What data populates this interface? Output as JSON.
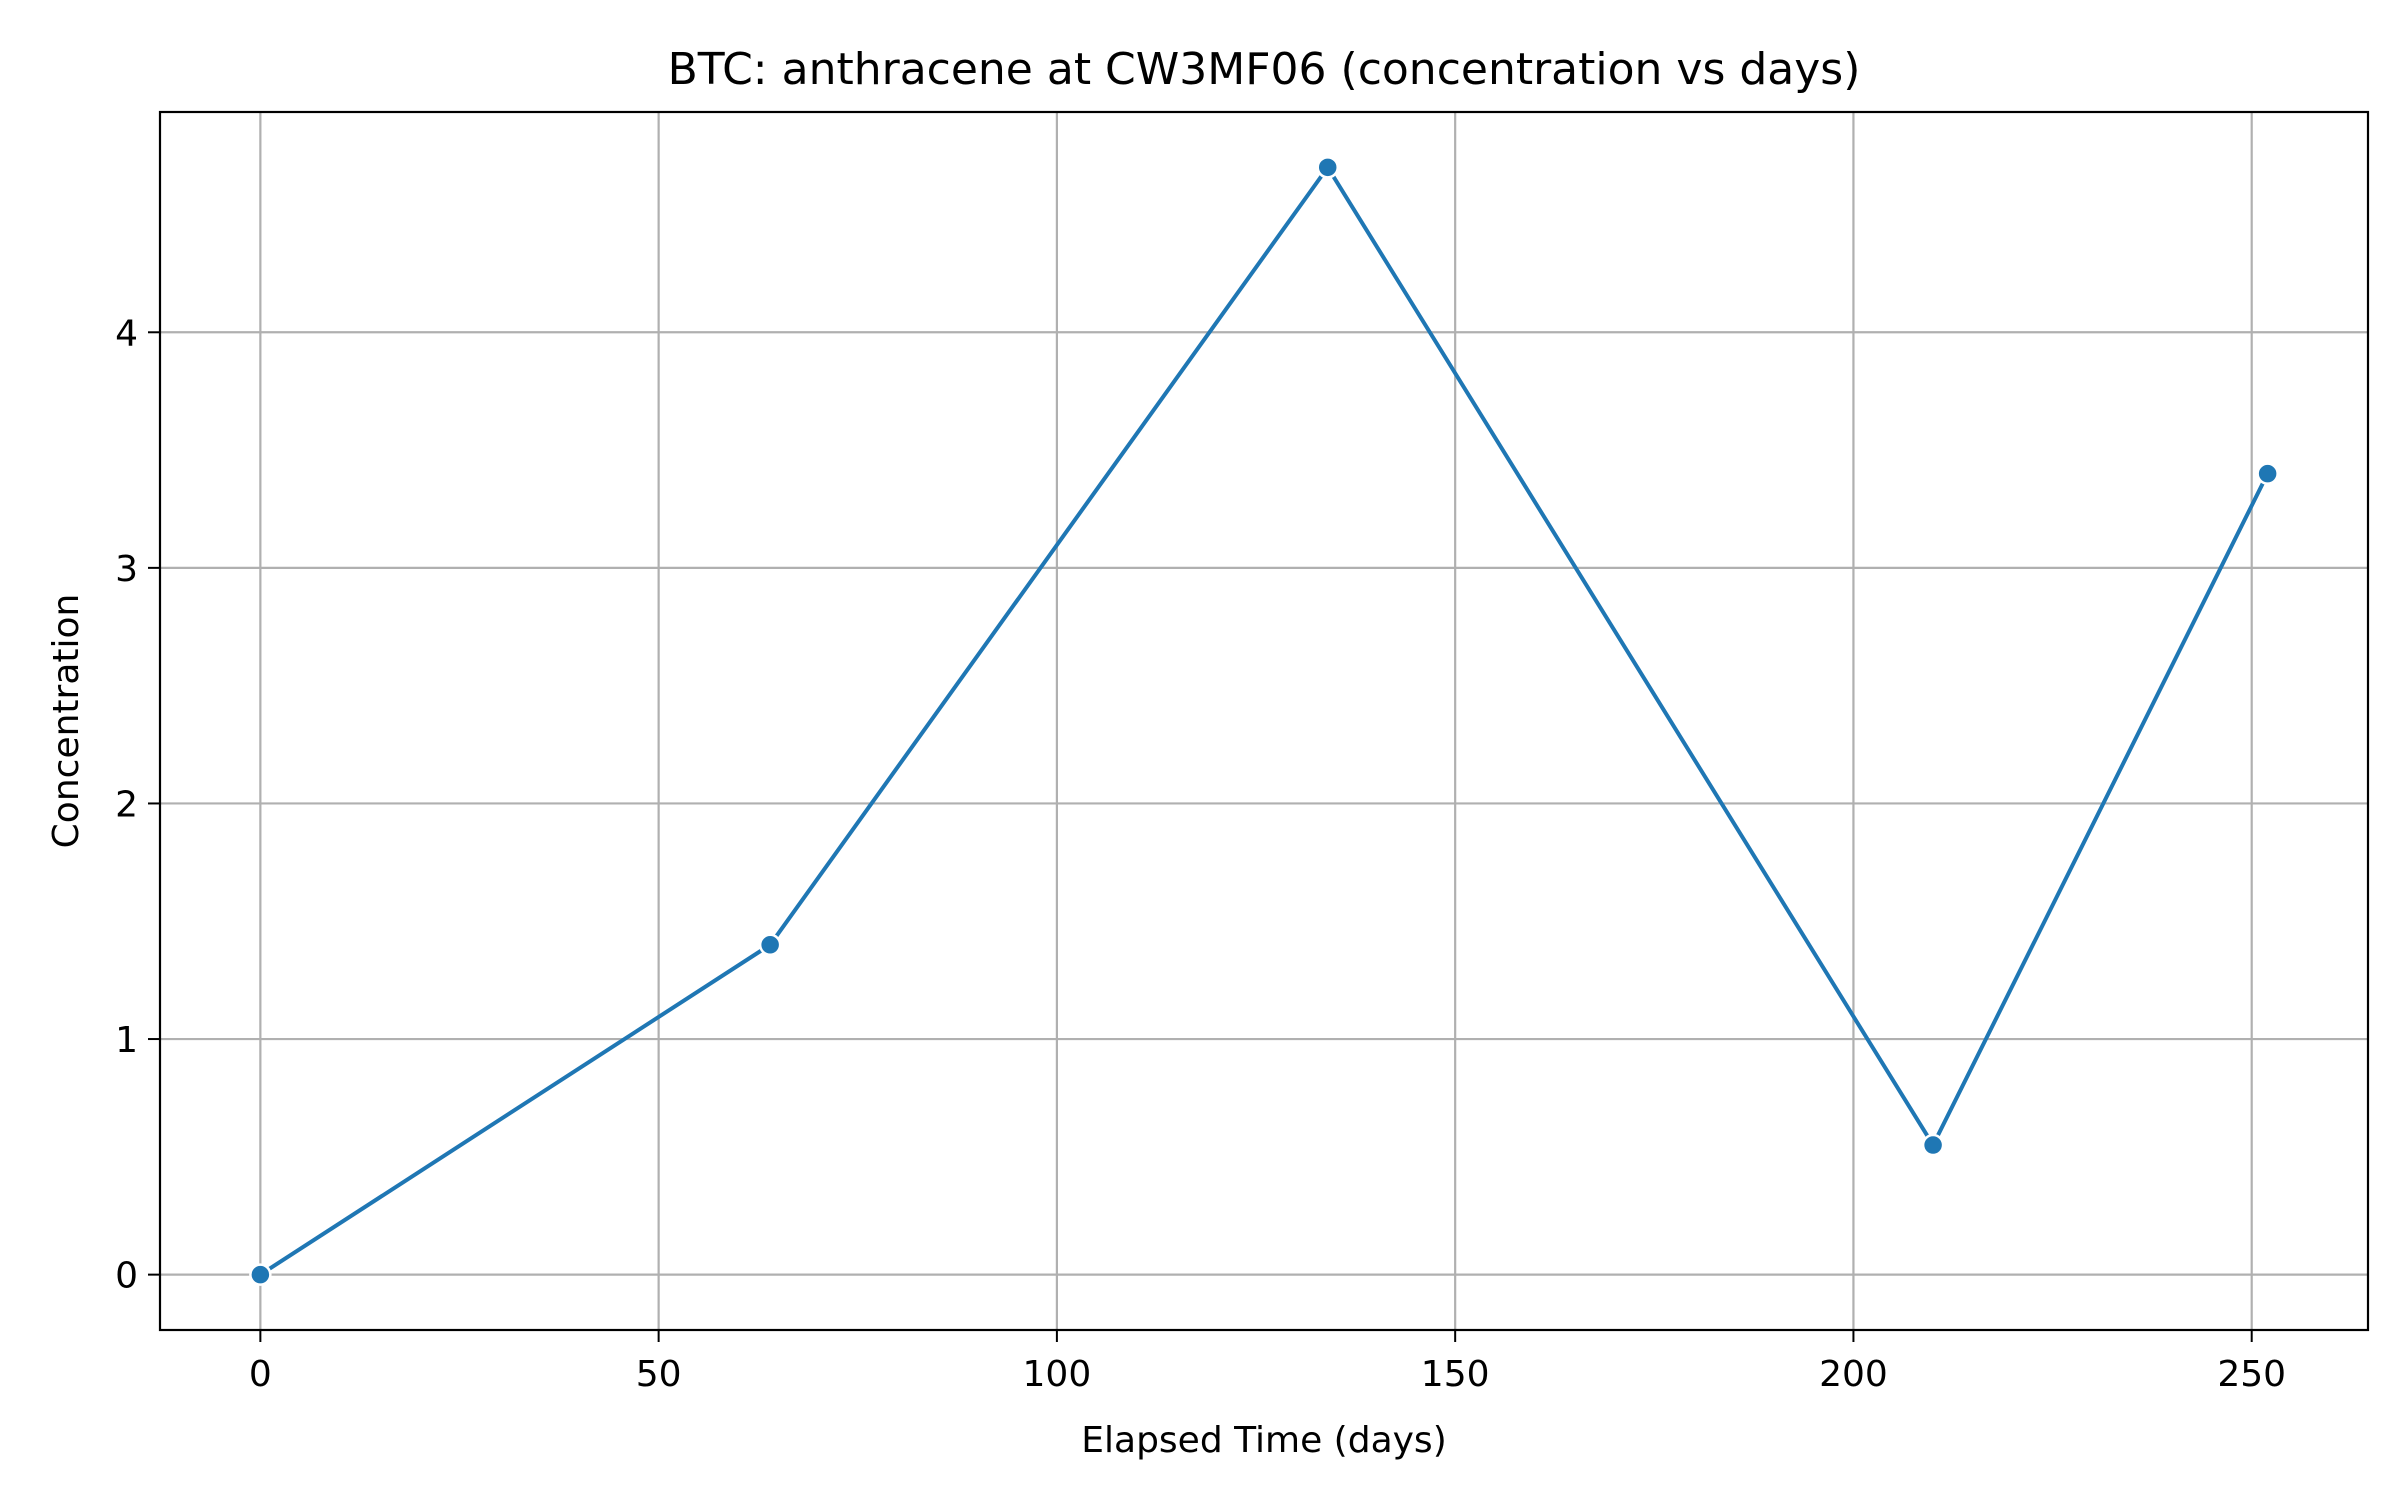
{
  "chart_data": {
    "type": "line",
    "title": "BTC: anthracene at CW3MF06 (concentration vs days)",
    "xlabel": "Elapsed Time (days)",
    "ylabel": "Concentration",
    "xlim": [
      -12.6,
      264.6
    ],
    "ylim": [
      -0.235,
      4.935
    ],
    "x_ticks": [
      0,
      50,
      100,
      150,
      200,
      250
    ],
    "y_ticks": [
      0,
      1,
      2,
      3,
      4
    ],
    "grid": true,
    "legend": "none",
    "series": [
      {
        "x": [
          0,
          64,
          134,
          210,
          252
        ],
        "y": [
          0.0,
          1.4,
          4.7,
          0.55,
          3.4
        ],
        "color": "#1f77b4",
        "marker": "circle"
      }
    ]
  }
}
